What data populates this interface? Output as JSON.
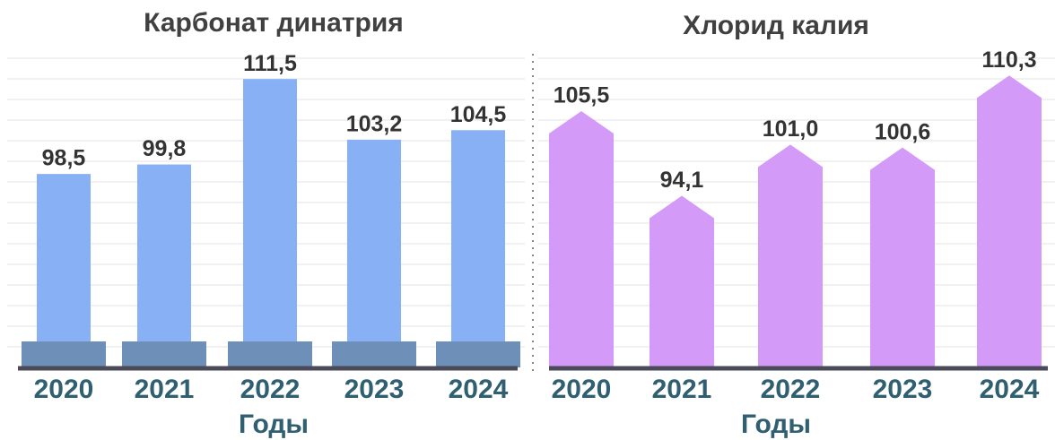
{
  "chart_data": [
    {
      "type": "bar",
      "title": "Карбонат динатрия",
      "x_label": "Годы",
      "categories": [
        "2020",
        "2021",
        "2022",
        "2023",
        "2024"
      ],
      "values": [
        98.5,
        99.8,
        111.5,
        103.2,
        104.5
      ],
      "value_labels": [
        "98,5",
        "99,8",
        "111,5",
        "103,2",
        "104,5"
      ],
      "color": "#87b0f5",
      "ylim": [
        72,
        120
      ],
      "grid": true
    },
    {
      "type": "arrow-bar",
      "title": "Хлорид калия",
      "x_label": "Годы",
      "categories": [
        "2020",
        "2021",
        "2022",
        "2023",
        "2024"
      ],
      "values": [
        105.5,
        94.1,
        101.0,
        100.6,
        110.3
      ],
      "value_labels": [
        "105,5",
        "94,1",
        "101,0",
        "100,6",
        "110,3"
      ],
      "color": "#d49af7",
      "ylim": [
        71,
        116
      ],
      "grid": true
    }
  ]
}
